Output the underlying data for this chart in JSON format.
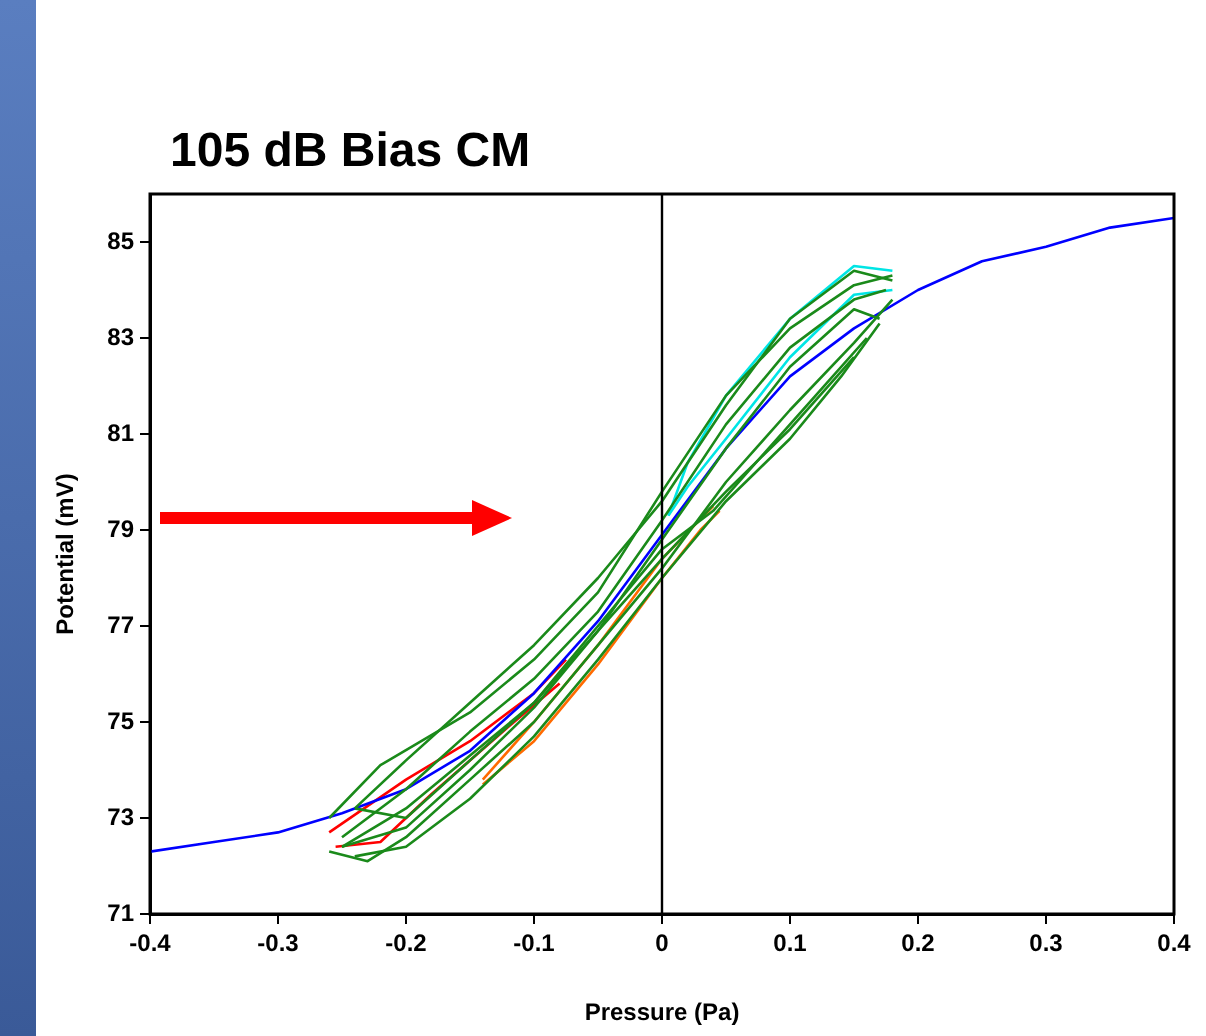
{
  "chart_data": {
    "type": "line",
    "title": "105 dB Bias CM",
    "xlabel": "Pressure (Pa)",
    "ylabel": "Potential (mV)",
    "xlim": [
      -0.4,
      0.4
    ],
    "xticks": [
      -0.4,
      -0.3,
      -0.2,
      -0.1,
      0,
      0.1,
      0.2,
      0.3,
      0.4
    ],
    "ylim": [
      71,
      86
    ],
    "yticks": [
      71,
      73,
      75,
      77,
      79,
      81,
      83,
      85
    ],
    "grid": false,
    "legend": false,
    "marker": "none",
    "line_style": "solid",
    "ref_lines": [
      {
        "axis": "x",
        "value": 0,
        "color": "#000000"
      }
    ],
    "series": [
      {
        "color": "#1a8a1a",
        "x": [
          -0.26,
          -0.22,
          -0.15,
          -0.1,
          -0.05,
          0,
          0.05,
          0.1,
          0.15,
          0.18
        ],
        "values": [
          73.0,
          74.1,
          75.2,
          76.3,
          77.7,
          79.8,
          81.8,
          83.2,
          84.1,
          84.3
        ]
      },
      {
        "color": "#1a8a1a",
        "x": [
          -0.26,
          -0.23,
          -0.2,
          -0.15,
          -0.1,
          -0.05,
          0,
          0.05,
          0.1,
          0.15,
          0.18
        ],
        "values": [
          72.3,
          72.1,
          72.6,
          73.8,
          75.0,
          76.6,
          78.2,
          80.0,
          81.5,
          82.9,
          83.8
        ]
      },
      {
        "color": "#1a8a1a",
        "x": [
          -0.25,
          -0.2,
          -0.15,
          -0.1,
          -0.05,
          0,
          0.05,
          0.1,
          0.15,
          0.175
        ],
        "values": [
          72.6,
          73.6,
          74.8,
          75.9,
          77.3,
          79.2,
          81.2,
          82.8,
          83.8,
          84.0
        ]
      },
      {
        "color": "#1a8a1a",
        "x": [
          -0.24,
          -0.2,
          -0.15,
          -0.1,
          -0.05,
          0,
          0.05,
          0.1,
          0.14,
          0.17
        ],
        "values": [
          72.2,
          72.4,
          73.4,
          74.7,
          76.3,
          78.0,
          79.6,
          80.9,
          82.2,
          83.3
        ]
      },
      {
        "color": "#1a8a1a",
        "x": [
          -0.24,
          -0.2,
          -0.15,
          -0.1,
          -0.05,
          0,
          0.05,
          0.1,
          0.15,
          0.18
        ],
        "values": [
          73.2,
          74.2,
          75.4,
          76.6,
          78.0,
          79.6,
          81.6,
          83.4,
          84.4,
          84.2
        ]
      },
      {
        "color": "#1a8a1a",
        "x": [
          -0.24,
          -0.2,
          -0.15,
          -0.1,
          -0.05,
          0,
          0.04,
          0.08,
          0.12,
          0.16
        ],
        "values": [
          73.2,
          73.0,
          74.2,
          75.4,
          77.0,
          78.6,
          79.4,
          80.6,
          81.8,
          83.0
        ]
      },
      {
        "color": "#1a8a1a",
        "x": [
          -0.25,
          -0.2,
          -0.15,
          -0.1,
          -0.05,
          0,
          0.05,
          0.1,
          0.15,
          0.17
        ],
        "values": [
          72.4,
          73.2,
          74.3,
          75.4,
          76.9,
          78.8,
          80.7,
          82.4,
          83.6,
          83.4
        ]
      },
      {
        "color": "#1a8a1a",
        "x": [
          -0.25,
          -0.2,
          -0.15,
          -0.1,
          -0.05,
          0,
          0.05,
          0.1,
          0.15
        ],
        "values": [
          72.4,
          72.8,
          74.0,
          75.3,
          76.9,
          78.4,
          79.8,
          81.1,
          82.6
        ]
      },
      {
        "color": "#0000ff",
        "x": [
          -0.4,
          -0.35,
          -0.3,
          -0.25,
          -0.2,
          -0.15,
          -0.1,
          -0.05,
          0,
          0.05,
          0.1,
          0.15,
          0.2,
          0.25,
          0.3,
          0.35,
          0.4
        ],
        "values": [
          72.3,
          72.5,
          72.7,
          73.1,
          73.6,
          74.4,
          75.6,
          77.1,
          78.9,
          80.7,
          82.2,
          83.2,
          84.0,
          84.6,
          84.9,
          85.3,
          85.5
        ]
      },
      {
        "color": "#00e5e5",
        "x": [
          0.005,
          0.02,
          0.05,
          0.1,
          0.15,
          0.18
        ],
        "values": [
          79.3,
          80.4,
          81.8,
          83.4,
          84.5,
          84.4
        ]
      },
      {
        "color": "#00e5e5",
        "x": [
          0.005,
          0.02,
          0.05,
          0.1,
          0.15,
          0.18
        ],
        "values": [
          79.3,
          79.9,
          80.9,
          82.6,
          83.9,
          84.0
        ]
      },
      {
        "color": "#ff6a00",
        "x": [
          -0.14,
          -0.1,
          -0.05,
          0,
          0.04
        ],
        "values": [
          73.8,
          75.0,
          76.6,
          78.4,
          79.5
        ]
      },
      {
        "color": "#ff6a00",
        "x": [
          -0.14,
          -0.1,
          -0.05,
          0,
          0.03,
          0.045
        ],
        "values": [
          73.7,
          74.6,
          76.2,
          78.0,
          79.0,
          79.4
        ]
      },
      {
        "color": "#ff0000",
        "x": [
          -0.26,
          -0.2,
          -0.15,
          -0.1,
          -0.075
        ],
        "values": [
          72.7,
          73.8,
          74.6,
          75.6,
          76.3
        ]
      },
      {
        "color": "#ff0000",
        "x": [
          -0.255,
          -0.22,
          -0.18,
          -0.12,
          -0.08
        ],
        "values": [
          72.4,
          72.5,
          73.5,
          74.9,
          75.8
        ]
      }
    ]
  }
}
